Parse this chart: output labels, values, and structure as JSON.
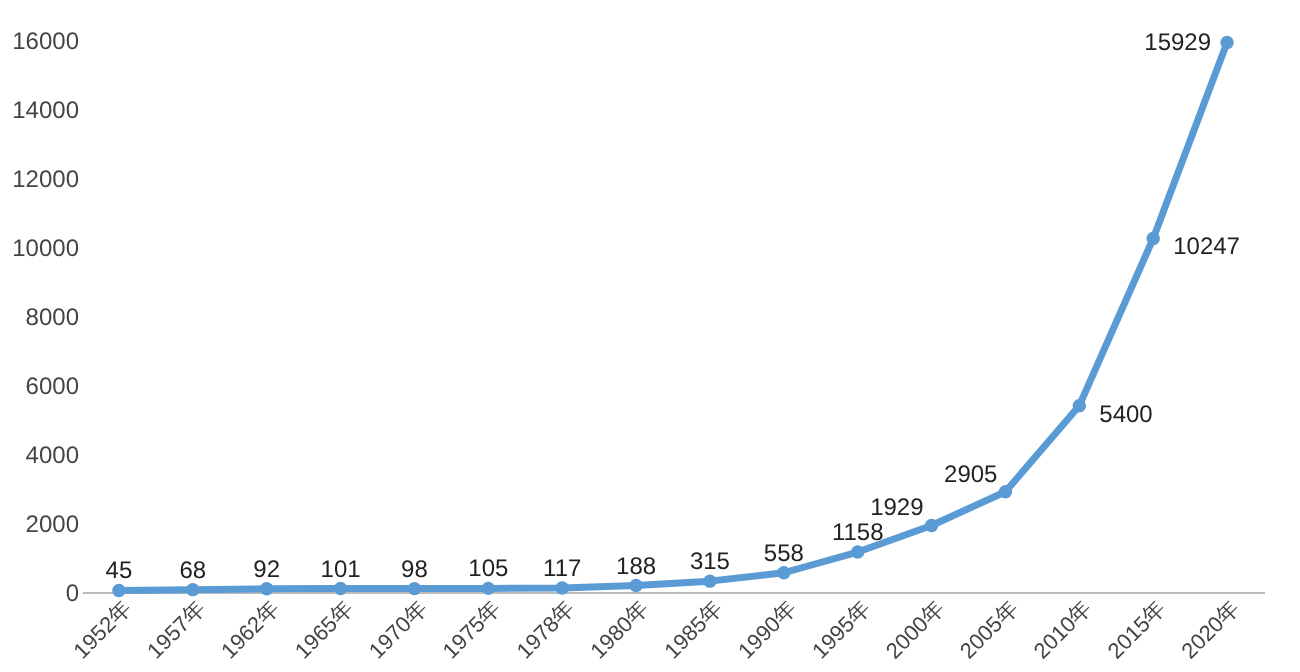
{
  "chart_data": {
    "type": "line",
    "categories": [
      "1952年",
      "1957年",
      "1962年",
      "1965年",
      "1970年",
      "1975年",
      "1978年",
      "1980年",
      "1985年",
      "1990年",
      "1995年",
      "2000年",
      "2005年",
      "2010年",
      "2015年",
      "2020年"
    ],
    "series": [
      {
        "color": "#5b9bd5",
        "values": [
          45,
          68,
          92,
          101,
          98,
          105,
          117,
          188,
          315,
          558,
          1158,
          1929,
          2905,
          5400,
          10247,
          15929
        ]
      }
    ],
    "ylim": [
      0,
      16000
    ],
    "yticks": [
      0,
      2000,
      4000,
      6000,
      8000,
      10000,
      12000,
      14000,
      16000
    ],
    "grid": false,
    "legend": false,
    "marker": "circle",
    "line_style": "solid",
    "data_labels": true
  }
}
